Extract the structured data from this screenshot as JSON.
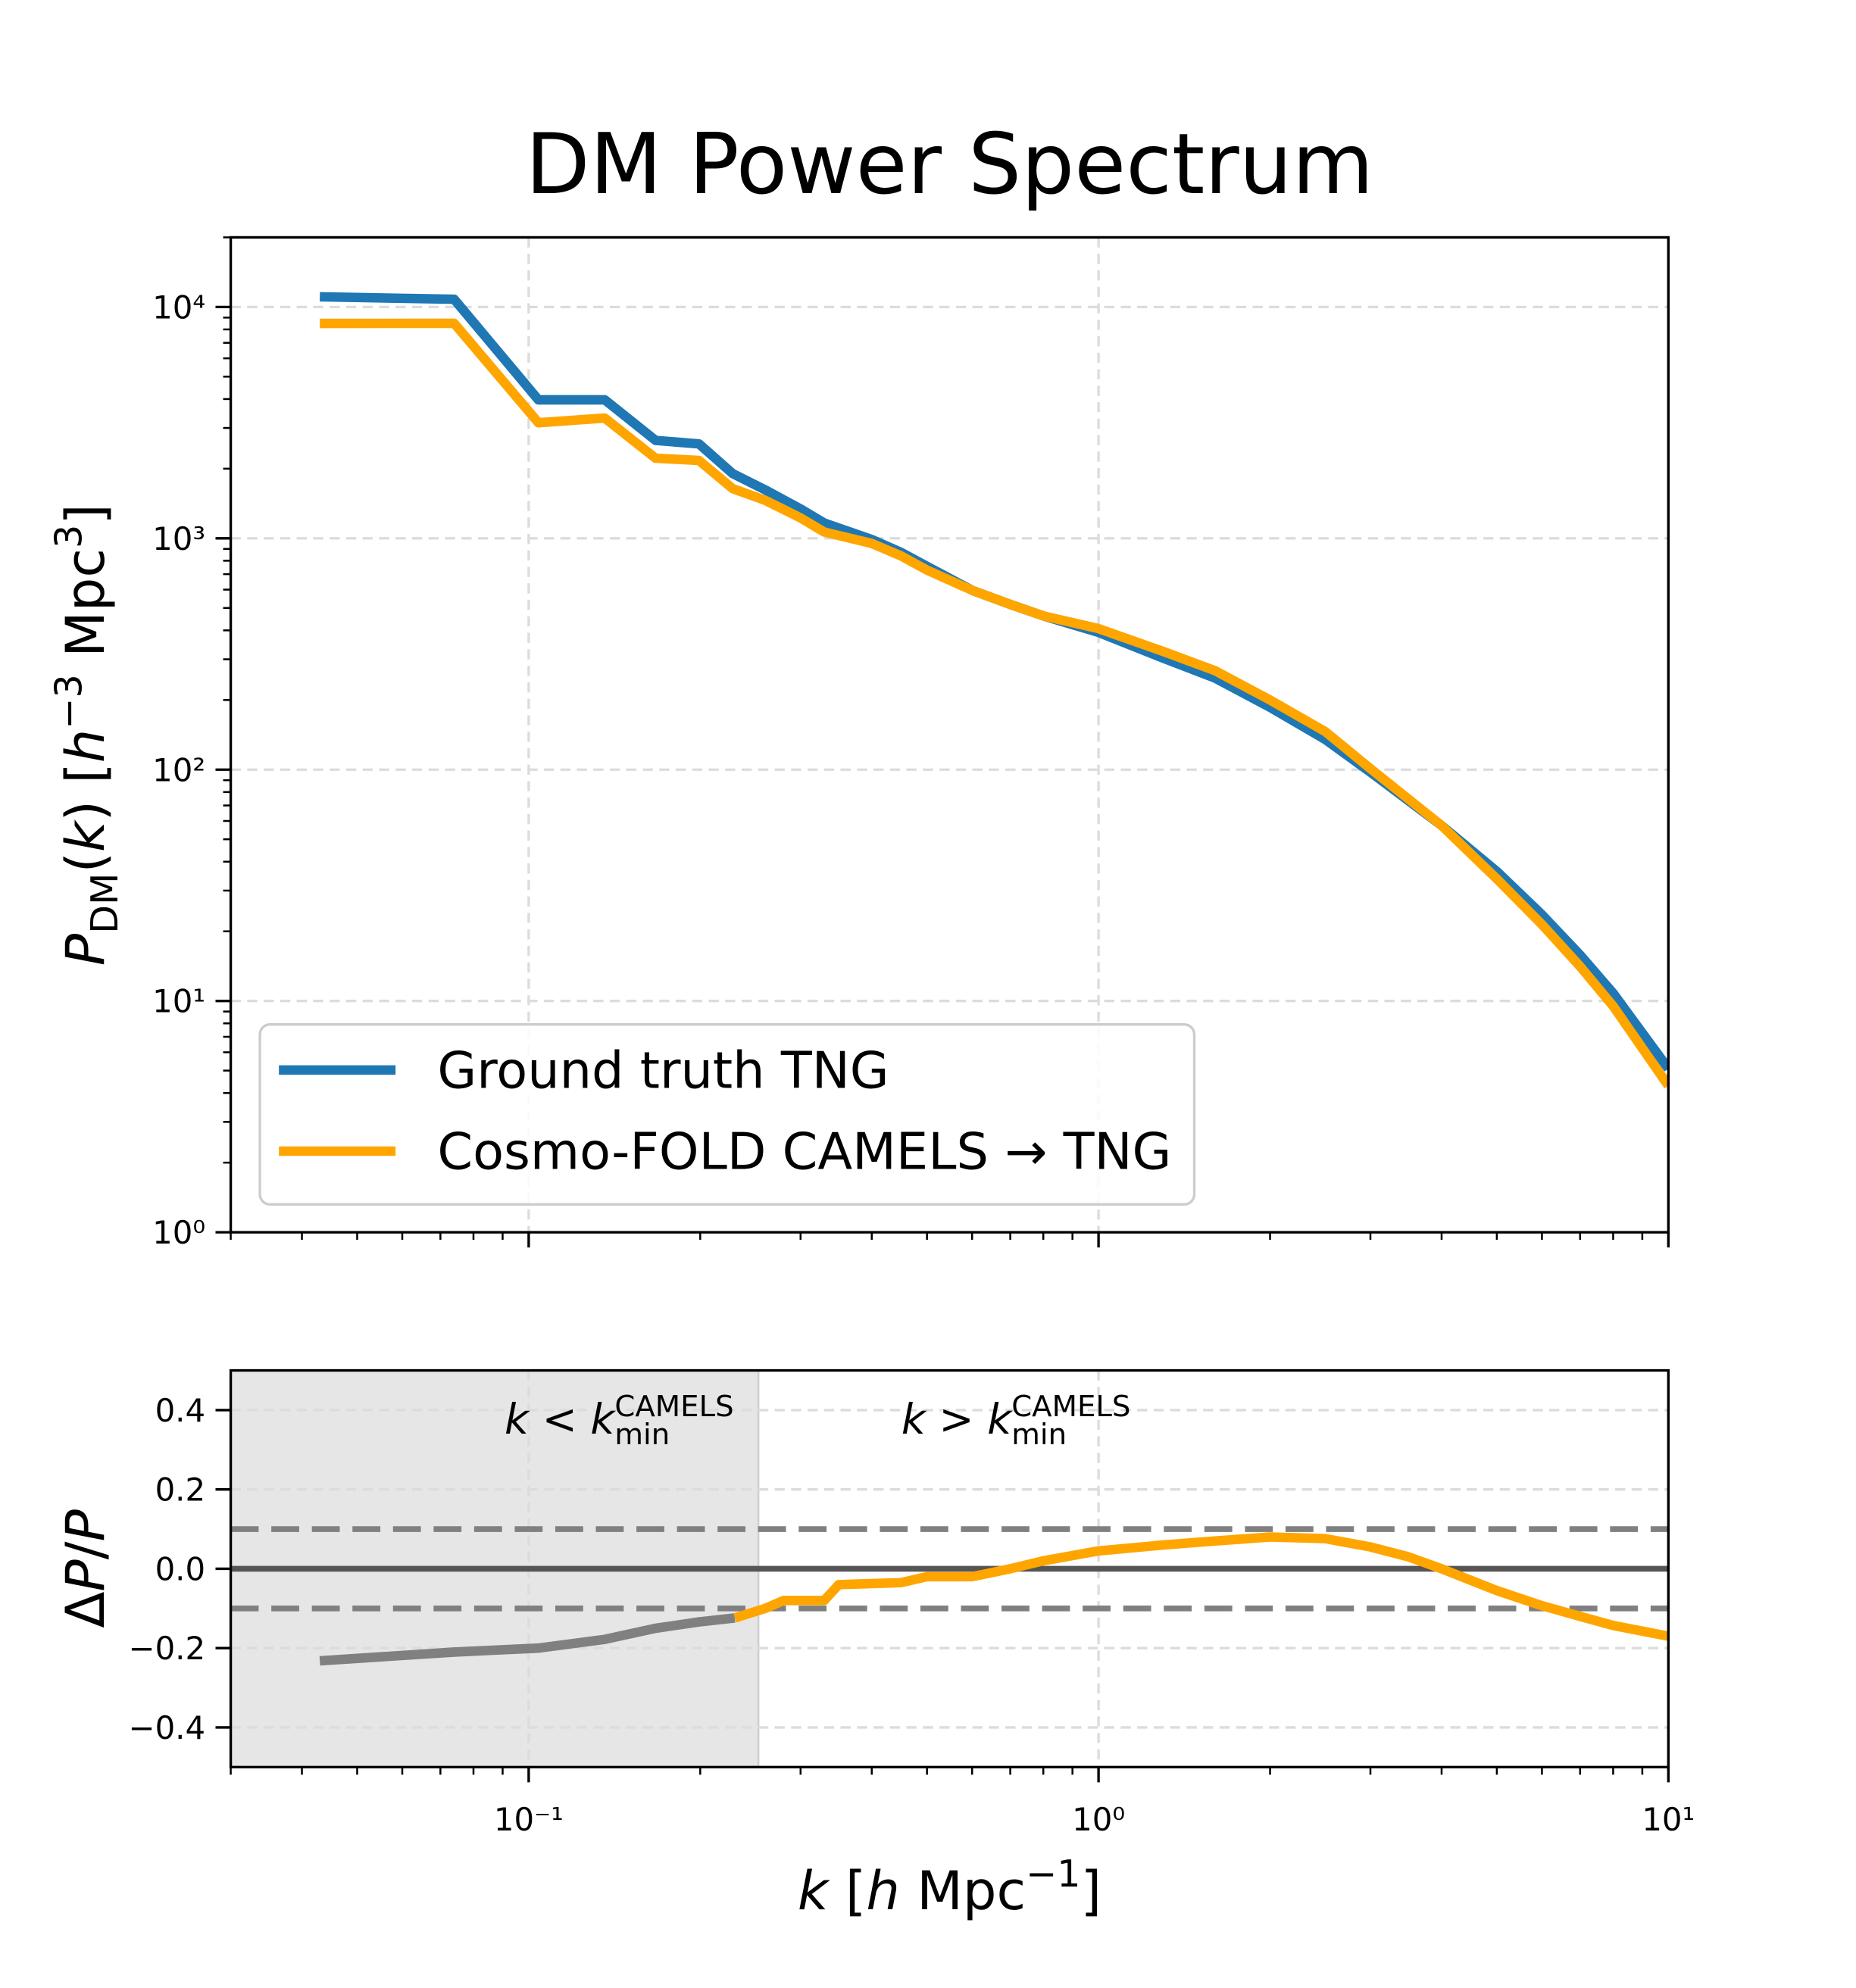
{
  "chart_data": [
    {
      "type": "line",
      "title": "DM Power Spectrum",
      "ylabel": [
        {
          "text": "P",
          "style": "italic"
        },
        {
          "text": "DM",
          "style": "sub"
        },
        {
          "text": "(",
          "style": "normal"
        },
        {
          "text": "k",
          "style": "italic"
        },
        {
          "text": ") [",
          "style": "normal"
        },
        {
          "text": "h",
          "style": "italic"
        },
        {
          "text": "−3",
          "style": "sup"
        },
        {
          "text": " Mpc",
          "style": "normal"
        },
        {
          "text": "3",
          "style": "sup"
        },
        {
          "text": "]",
          "style": "normal"
        }
      ],
      "xscale": "log",
      "yscale": "log",
      "xlim": [
        0.03,
        10
      ],
      "ylim": [
        1,
        20000
      ],
      "xticks": [
        0.1,
        1,
        10
      ],
      "xtick_labels": false,
      "yticks": [
        {
          "value": 1,
          "label": "10⁰"
        },
        {
          "value": 10,
          "label": "10¹"
        },
        {
          "value": 100,
          "label": "10²"
        },
        {
          "value": 1000,
          "label": "10³"
        },
        {
          "value": 10000,
          "label": "10⁴"
        }
      ],
      "grid": true,
      "minor_ticks": true,
      "legend": "lower left",
      "series": [
        {
          "name": "Ground truth TNG",
          "color": "#1f77b4",
          "x": [
            0.043,
            0.074,
            0.104,
            0.136,
            0.167,
            0.199,
            0.228,
            0.26,
            0.3,
            0.33,
            0.4,
            0.45,
            0.5,
            0.6,
            0.7,
            0.8,
            1.0,
            1.3,
            1.6,
            2.0,
            2.5,
            3.0,
            4.0,
            5.0,
            6.0,
            7.0,
            8.0,
            10
          ],
          "values": [
            11070,
            10800,
            3970,
            3970,
            2650,
            2560,
            1905,
            1620,
            1340,
            1165,
            988,
            870,
            757,
            596,
            518,
            462,
            392,
            303,
            249,
            186,
            135,
            97.5,
            57.3,
            36.3,
            23.6,
            15.8,
            10.8,
            5.1
          ]
        },
        {
          "name": "Cosmo-FOLD CAMELS → TNG",
          "color": "#ffa500",
          "x": [
            0.043,
            0.074,
            0.104,
            0.136,
            0.167,
            0.199,
            0.228,
            0.26,
            0.3,
            0.33,
            0.4,
            0.45,
            0.5,
            0.6,
            0.7,
            0.8,
            1.0,
            1.3,
            1.6,
            2.0,
            2.5,
            3.0,
            4.0,
            5.0,
            6.0,
            7.0,
            8.0,
            10
          ],
          "values": [
            8490,
            8500,
            3160,
            3310,
            2220,
            2170,
            1640,
            1460,
            1225,
            1065,
            950,
            840,
            729,
            596,
            518,
            462,
            407,
            324,
            268,
            200,
            146,
            101,
            57.3,
            33.7,
            21.4,
            14.1,
            9.5,
            4.3
          ]
        }
      ]
    },
    {
      "type": "line",
      "xlabel": [
        {
          "text": "k",
          "style": "italic"
        },
        {
          "text": " [",
          "style": "normal"
        },
        {
          "text": "h",
          "style": "italic"
        },
        {
          "text": " Mpc",
          "style": "normal"
        },
        {
          "text": "−1",
          "style": "sup"
        },
        {
          "text": "]",
          "style": "normal"
        }
      ],
      "ylabel": [
        {
          "text": "Δ",
          "style": "normal"
        },
        {
          "text": "P",
          "style": "italic"
        },
        {
          "text": "/",
          "style": "normal"
        },
        {
          "text": "P",
          "style": "italic"
        }
      ],
      "xscale": "log",
      "xlim": [
        0.03,
        10
      ],
      "ylim": [
        -0.5,
        0.5
      ],
      "xticks": [
        {
          "value": 0.1,
          "label": "10⁻¹"
        },
        {
          "value": 1,
          "label": "10⁰"
        },
        {
          "value": 10,
          "label": "10¹"
        }
      ],
      "yticks": [
        0.4,
        0.2,
        {
          "value": 0,
          "label": "0.0"
        },
        {
          "value": -0.2,
          "label": "−0.2"
        },
        {
          "value": -0.4,
          "label": "−0.4"
        }
      ],
      "grid": true,
      "minor_ticks": true,
      "shaded_xrange": [
        0.03,
        0.253
      ],
      "reference_lines": [
        {
          "value": 0.1,
          "style": "dashed"
        },
        {
          "value": 0,
          "style": "solid"
        },
        {
          "value": -0.1,
          "style": "dashed"
        }
      ],
      "annotations": [
        [
          {
            "text": "k",
            "style": "italic"
          },
          {
            "text": " < ",
            "style": "normal"
          },
          {
            "text": "k",
            "style": "italic"
          },
          {
            "text": "CAMELS",
            "style": "sup"
          },
          {
            "text": "min",
            "style": "sub-stack"
          }
        ],
        [
          {
            "text": "k",
            "style": "italic"
          },
          {
            "text": " > ",
            "style": "normal"
          },
          {
            "text": "k",
            "style": "italic"
          },
          {
            "text": "CAMELS",
            "style": "sup"
          },
          {
            "text": "min",
            "style": "sub-stack"
          }
        ]
      ],
      "series": [
        {
          "color": "#808080",
          "x": [
            0.043,
            0.074,
            0.104,
            0.136,
            0.167,
            0.199,
            0.23
          ],
          "values": [
            -0.232,
            -0.21,
            -0.2,
            -0.178,
            -0.15,
            -0.134,
            -0.124
          ]
        },
        {
          "color": "#ffa500",
          "x": [
            0.23,
            0.26,
            0.28,
            0.33,
            0.35,
            0.45,
            0.5,
            0.6,
            0.7,
            0.8,
            1.0,
            1.3,
            1.6,
            2.0,
            2.5,
            3.0,
            3.5,
            4.0,
            5.0,
            6.0,
            7.0,
            8.0,
            10
          ],
          "values": [
            -0.124,
            -0.1,
            -0.08,
            -0.08,
            -0.04,
            -0.035,
            -0.02,
            -0.02,
            0.0,
            0.02,
            0.045,
            0.06,
            0.07,
            0.08,
            0.076,
            0.055,
            0.03,
            0.0,
            -0.055,
            -0.093,
            -0.12,
            -0.143,
            -0.17
          ]
        }
      ]
    }
  ]
}
